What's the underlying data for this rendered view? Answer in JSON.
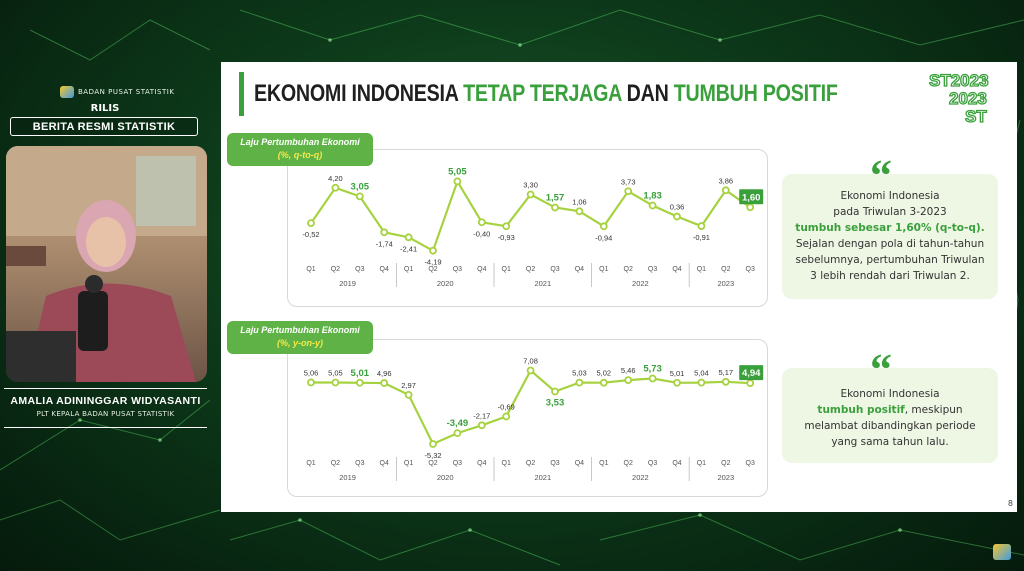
{
  "broadcast": {
    "logo_text": "BADAN PUSAT STATISTIK",
    "rilis_label": "RILIS",
    "program_title": "BERITA RESMI STATISTIK",
    "speaker_name": "AMALIA ADININGGAR WIDYASANTI",
    "speaker_role": "PLT KEPALA BADAN PUSAT STATISTIK"
  },
  "slide": {
    "title_part1": "EKONOMI INDONESIA ",
    "title_part2": "TETAP TERJAGA",
    "title_part3": " DAN ",
    "title_part4": "TUMBUH POSITIF",
    "page_number": "8",
    "brand_text": "ST2023",
    "colors": {
      "accent": "#3aa03c",
      "label_bg": "#5fb346",
      "label_unit": "#f5e94a",
      "line": "#a6d23f",
      "callout_bg": "#eef6e4"
    }
  },
  "callouts": {
    "qtoq": {
      "line1": "Ekonomi Indonesia",
      "line2": "pada Triwulan 3-2023",
      "line3_hl": "tumbuh sebesar 1,60% (q-to-q).",
      "line4": "Sejalan dengan pola di tahun-tahun",
      "line5": "sebelumnya, pertumbuhan Triwulan",
      "line6": "3 lebih rendah dari Triwulan 2."
    },
    "yony": {
      "line1": "Ekonomi Indonesia",
      "line2_hl": "tumbuh positif",
      "line2_rest": ", meskipun",
      "line3": "melambat dibandingkan periode",
      "line4": "yang sama tahun lalu."
    }
  },
  "chart_data": [
    {
      "type": "line",
      "label_title": "Laju Pertumbuhan Ekonomi",
      "label_unit": "(%, q-to-q)",
      "quarters": [
        "Q1",
        "Q2",
        "Q3",
        "Q4",
        "Q1",
        "Q2",
        "Q3",
        "Q4",
        "Q1",
        "Q2",
        "Q3",
        "Q4",
        "Q1",
        "Q2",
        "Q3",
        "Q4",
        "Q1",
        "Q2",
        "Q3"
      ],
      "years": [
        "2019",
        "2020",
        "2021",
        "2022",
        "2023"
      ],
      "values": [
        -0.52,
        4.2,
        3.05,
        -1.74,
        -2.41,
        -4.19,
        5.05,
        -0.4,
        -0.93,
        3.3,
        1.57,
        1.06,
        -0.94,
        3.73,
        1.83,
        0.36,
        -0.91,
        3.86,
        1.6
      ],
      "value_labels": [
        "-0,52",
        "4,20",
        "3,05",
        "-1,74",
        "-2,41",
        "-4,19",
        "5,05",
        "-0,40",
        "-0,93",
        "3,30",
        "1,57",
        "1,06",
        "-0,94",
        "3,73",
        "1,83",
        "0,36",
        "-0,91",
        "3,86",
        "1,60"
      ],
      "highlight": [
        false,
        false,
        true,
        false,
        false,
        false,
        true,
        false,
        false,
        false,
        true,
        false,
        false,
        false,
        true,
        false,
        false,
        false,
        true
      ],
      "label_below": [
        true,
        false,
        false,
        true,
        true,
        true,
        false,
        true,
        true,
        false,
        false,
        false,
        true,
        false,
        false,
        false,
        true,
        false,
        false
      ]
    },
    {
      "type": "line",
      "label_title": "Laju Pertumbuhan Ekonomi",
      "label_unit": "(%, y-on-y)",
      "quarters": [
        "Q1",
        "Q2",
        "Q3",
        "Q4",
        "Q1",
        "Q2",
        "Q3",
        "Q4",
        "Q1",
        "Q2",
        "Q3",
        "Q4",
        "Q1",
        "Q2",
        "Q3",
        "Q4",
        "Q1",
        "Q2",
        "Q3"
      ],
      "years": [
        "2019",
        "2020",
        "2021",
        "2022",
        "2023"
      ],
      "values": [
        5.06,
        5.05,
        5.01,
        4.96,
        2.97,
        -5.32,
        -3.49,
        -2.17,
        -0.69,
        7.08,
        3.53,
        5.03,
        5.02,
        5.46,
        5.73,
        5.01,
        5.04,
        5.17,
        4.94
      ],
      "value_labels": [
        "5,06",
        "5,05",
        "5,01",
        "4,96",
        "2,97",
        "-5,32",
        "-3,49",
        "-2,17",
        "-0,69",
        "7,08",
        "3,53",
        "5,03",
        "5,02",
        "5,46",
        "5,73",
        "5,01",
        "5,04",
        "5,17",
        "4,94"
      ],
      "highlight": [
        false,
        false,
        true,
        false,
        false,
        false,
        true,
        false,
        false,
        false,
        true,
        false,
        false,
        false,
        true,
        false,
        false,
        false,
        true
      ],
      "label_below": [
        false,
        false,
        false,
        false,
        false,
        true,
        false,
        false,
        false,
        false,
        true,
        false,
        false,
        false,
        false,
        false,
        false,
        false,
        false
      ]
    }
  ]
}
